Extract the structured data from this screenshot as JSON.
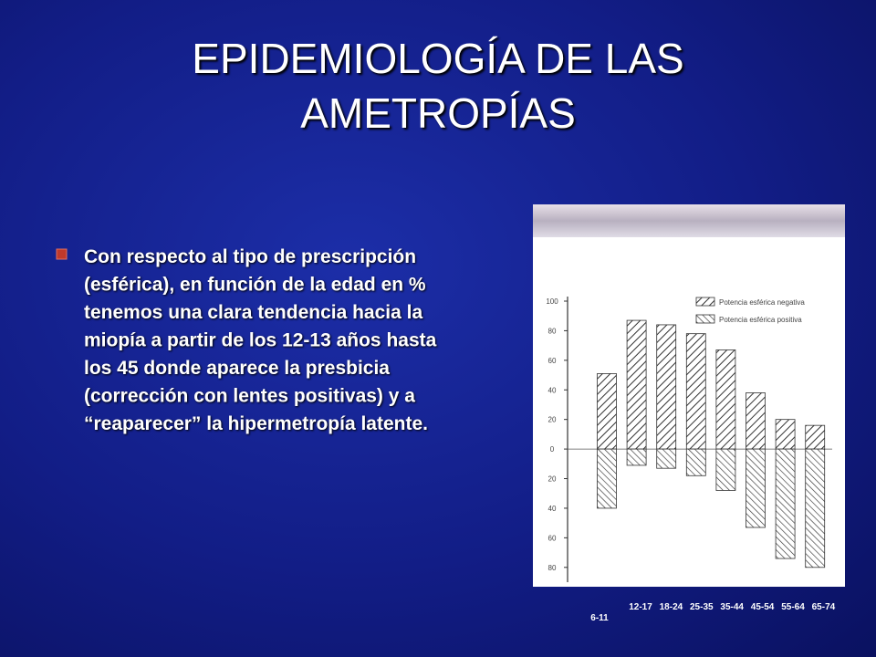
{
  "slide": {
    "title": [
      "EPIDEMIOLOGÍA DE LAS",
      "AMETROPÍAS"
    ],
    "bullet": [
      "Con respecto al tipo de prescripción",
      "(esférica), en función de la edad en %",
      "tenemos una clara tendencia hacia la",
      "miopía a partir de los 12-13 años hasta",
      "los 45 donde aparece la presbicia",
      "(corrección con lentes positivas) y a",
      "“reaparecer” la hipermetropía latente."
    ]
  },
  "chart_data": {
    "type": "bar",
    "categories": [
      "6-11",
      "12-17",
      "18-24",
      "25-35",
      "35-44",
      "45-54",
      "55-64",
      "65-74"
    ],
    "series": [
      {
        "name": "Potencia esférica negativa",
        "color": "#333333",
        "values": [
          51,
          87,
          84,
          78,
          67,
          38,
          20,
          16
        ]
      },
      {
        "name": "Potencia esférica positiva",
        "color": "#333333",
        "values": [
          -40,
          -11,
          -13,
          -18,
          -28,
          -53,
          -74,
          -80
        ]
      }
    ],
    "ylim": [
      -90,
      100
    ],
    "yticks": [
      100,
      80,
      60,
      40,
      20,
      0,
      {
        "value": -20,
        "label": "20"
      },
      {
        "value": -40,
        "label": "40"
      },
      {
        "value": -60,
        "label": "60"
      },
      {
        "value": -80,
        "label": "80"
      }
    ]
  }
}
